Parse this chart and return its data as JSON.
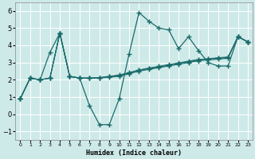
{
  "title": "",
  "xlabel": "Humidex (Indice chaleur)",
  "xlim": [
    0,
    23
  ],
  "ylim": [
    -1.5,
    6.5
  ],
  "xticks": [
    0,
    1,
    2,
    3,
    4,
    5,
    6,
    7,
    8,
    9,
    10,
    11,
    12,
    13,
    14,
    15,
    16,
    17,
    18,
    19,
    20,
    21,
    22,
    23
  ],
  "yticks": [
    -1,
    0,
    1,
    2,
    3,
    4,
    5,
    6
  ],
  "background_color": "#ceeae8",
  "grid_color": "#ffffff",
  "line_color": "#1a6b6b",
  "series_main": {
    "x": [
      0,
      1,
      2,
      3,
      4,
      5,
      6,
      7,
      8,
      9,
      10,
      11,
      12,
      13,
      14,
      15,
      16,
      17,
      18,
      19,
      20,
      21,
      22,
      23
    ],
    "y": [
      0.9,
      2.1,
      2.0,
      3.6,
      4.7,
      2.2,
      2.1,
      0.5,
      -0.6,
      -0.6,
      0.9,
      3.5,
      5.9,
      5.4,
      5.0,
      4.9,
      3.8,
      4.5,
      3.7,
      3.0,
      2.8,
      2.8,
      4.5,
      4.2
    ]
  },
  "series_band": [
    {
      "x": [
        0,
        1,
        2,
        3,
        4,
        5,
        6,
        7,
        8,
        9,
        10,
        11,
        12,
        13,
        14,
        15,
        16,
        17,
        18,
        19,
        20,
        21,
        22,
        23
      ],
      "y": [
        0.9,
        2.1,
        2.0,
        2.1,
        4.7,
        2.2,
        2.1,
        2.1,
        2.1,
        2.15,
        2.2,
        2.35,
        2.5,
        2.6,
        2.7,
        2.8,
        2.9,
        3.0,
        3.1,
        3.15,
        3.2,
        3.25,
        4.5,
        4.2
      ]
    },
    {
      "x": [
        0,
        1,
        2,
        3,
        4,
        5,
        6,
        7,
        8,
        9,
        10,
        11,
        12,
        13,
        14,
        15,
        16,
        17,
        18,
        19,
        20,
        21,
        22,
        23
      ],
      "y": [
        0.9,
        2.1,
        2.0,
        2.1,
        4.7,
        2.2,
        2.1,
        2.1,
        2.12,
        2.18,
        2.25,
        2.4,
        2.55,
        2.65,
        2.75,
        2.85,
        2.95,
        3.05,
        3.15,
        3.2,
        3.25,
        3.3,
        4.5,
        4.2
      ]
    },
    {
      "x": [
        0,
        1,
        2,
        3,
        4,
        5,
        6,
        7,
        8,
        9,
        10,
        11,
        12,
        13,
        14,
        15,
        16,
        17,
        18,
        19,
        20,
        21,
        22,
        23
      ],
      "y": [
        0.9,
        2.1,
        2.0,
        2.1,
        4.7,
        2.2,
        2.1,
        2.1,
        2.13,
        2.2,
        2.28,
        2.42,
        2.57,
        2.68,
        2.78,
        2.88,
        2.98,
        3.08,
        3.18,
        3.22,
        3.28,
        3.32,
        4.5,
        4.2
      ]
    }
  ]
}
